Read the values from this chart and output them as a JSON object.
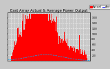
{
  "title": "East Array Actual & Average Power Output",
  "title_fontsize": 3.8,
  "bg_color": "#c8c8c8",
  "plot_bg_color": "#c8c8c8",
  "grid_color": "#ffffff",
  "bar_color": "#ff0000",
  "avg_line_color": "#00aaff",
  "legend_actual_color": "#ff0000",
  "legend_avg_color": "#0000ff",
  "legend_fontsize": 3.0,
  "ylim": [
    0,
    1800
  ],
  "yticks_right": [
    200,
    400,
    600,
    800,
    1000,
    1200,
    1400,
    1600
  ],
  "num_points": 400,
  "peak_value": 1750,
  "avg_value": 200
}
